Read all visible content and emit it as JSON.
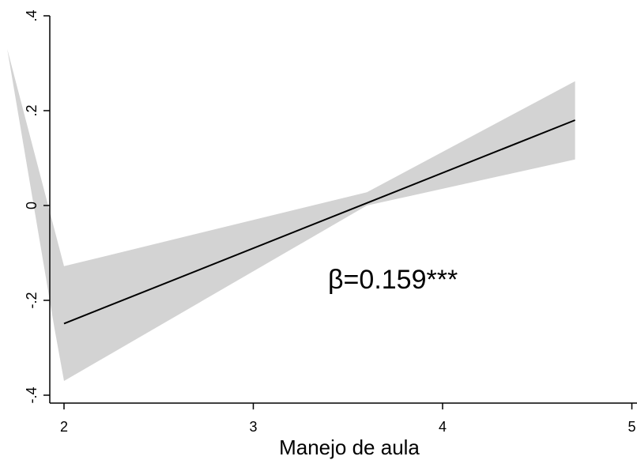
{
  "chart_data": {
    "type": "line",
    "title": "",
    "xlabel": "Manejo de aula",
    "ylabel": "",
    "xlim": [
      1.95,
      5.0
    ],
    "ylim": [
      -0.42,
      0.42
    ],
    "x_ticks": [
      2,
      3,
      4,
      5
    ],
    "x_tick_labels": [
      "2",
      "3",
      "4",
      "5"
    ],
    "y_ticks": [
      -0.4,
      -0.2,
      0,
      0.2,
      0.4
    ],
    "y_tick_labels": [
      "-.4",
      "-.2",
      "0",
      ".2",
      ".4"
    ],
    "series": [
      {
        "x": [
          2.0,
          4.7
        ],
        "y": [
          -0.249,
          0.18
        ],
        "color": "#000000"
      }
    ],
    "confidence_band": {
      "color": "#d3d3d3",
      "upper": {
        "x": [
          1.7,
          2.0,
          3.6,
          4.7
        ],
        "y": [
          0.33,
          -0.128,
          0.028,
          0.262
        ]
      },
      "lower": {
        "x": [
          4.7,
          3.6,
          2.0,
          1.95
        ],
        "y": [
          0.097,
          0.0,
          -0.37,
          -0.26
        ]
      }
    },
    "annotations": [
      {
        "text": "β=0.159***",
        "x": 3.4,
        "y": -0.15
      }
    ],
    "grid": false,
    "legend": "none"
  }
}
